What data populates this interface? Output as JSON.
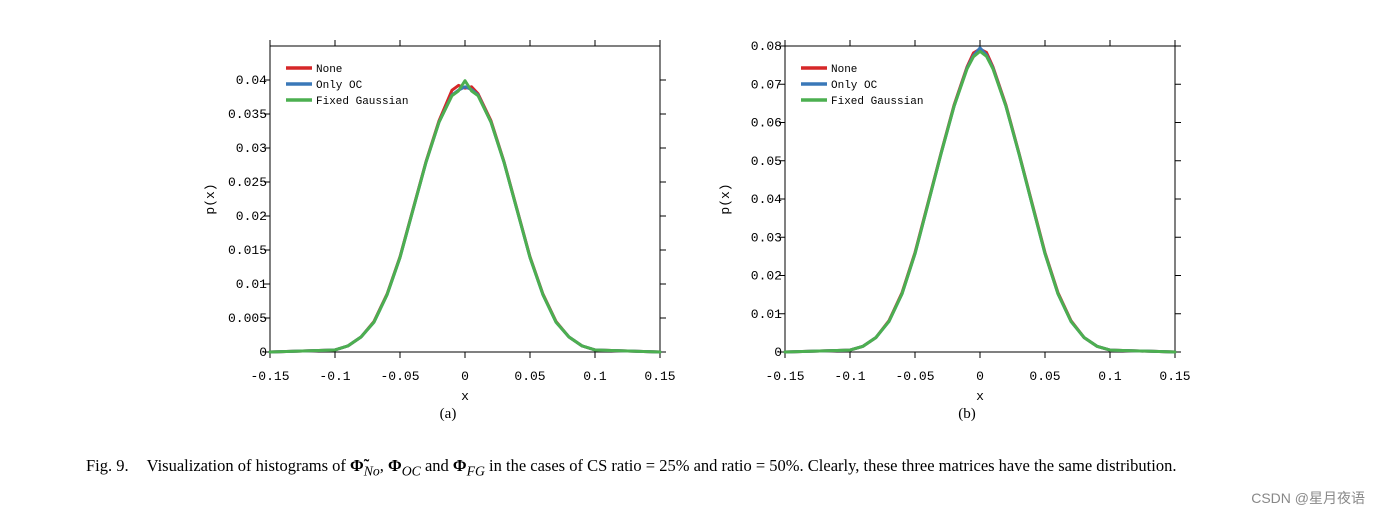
{
  "chart_data": [
    {
      "id": "a",
      "type": "line",
      "xlabel": "x",
      "ylabel": "p(x)",
      "xlim": [
        -0.15,
        0.15
      ],
      "ylim": [
        0,
        0.045
      ],
      "xticks": [
        -0.15,
        -0.1,
        -0.05,
        0,
        0.05,
        0.1,
        0.15
      ],
      "xtick_labels": [
        "-0.15",
        "-0.1",
        "-0.05",
        "0",
        "0.05",
        "0.1",
        "0.15"
      ],
      "yticks": [
        0,
        0.005,
        0.01,
        0.015,
        0.02,
        0.025,
        0.03,
        0.035,
        0.04
      ],
      "ytick_labels": [
        "0",
        "0.005",
        "0.01",
        "0.015",
        "0.02",
        "0.025",
        "0.03",
        "0.035",
        "0.04"
      ],
      "legend": "top-left",
      "sublabel": "(a)",
      "series": [
        {
          "name": "None",
          "color": "#d62728",
          "x": [
            -0.15,
            -0.1,
            -0.09,
            -0.08,
            -0.07,
            -0.06,
            -0.05,
            -0.04,
            -0.03,
            -0.02,
            -0.01,
            -0.005,
            0,
            0.005,
            0.01,
            0.02,
            0.03,
            0.04,
            0.05,
            0.06,
            0.07,
            0.08,
            0.09,
            0.1,
            0.15
          ],
          "y": [
            0,
            0.0003,
            0.0009,
            0.0022,
            0.0045,
            0.0085,
            0.014,
            0.021,
            0.028,
            0.034,
            0.0385,
            0.0392,
            0.0388,
            0.039,
            0.038,
            0.034,
            0.028,
            0.021,
            0.014,
            0.0085,
            0.0045,
            0.0022,
            0.0009,
            0.0003,
            0
          ]
        },
        {
          "name": "Only OC",
          "color": "#3a78b8",
          "x": [
            -0.15,
            -0.1,
            -0.09,
            -0.08,
            -0.07,
            -0.06,
            -0.05,
            -0.04,
            -0.03,
            -0.02,
            -0.01,
            -0.005,
            0,
            0.005,
            0.01,
            0.02,
            0.03,
            0.04,
            0.05,
            0.06,
            0.07,
            0.08,
            0.09,
            0.1,
            0.15
          ],
          "y": [
            0,
            0.0003,
            0.0009,
            0.0022,
            0.0044,
            0.0084,
            0.0139,
            0.0209,
            0.0279,
            0.0338,
            0.0378,
            0.0385,
            0.039,
            0.0386,
            0.0378,
            0.0338,
            0.0279,
            0.0209,
            0.0139,
            0.0084,
            0.0044,
            0.0022,
            0.0009,
            0.0003,
            0
          ]
        },
        {
          "name": "Fixed Gaussian",
          "color": "#4caf50",
          "x": [
            -0.15,
            -0.1,
            -0.09,
            -0.08,
            -0.07,
            -0.06,
            -0.05,
            -0.04,
            -0.03,
            -0.02,
            -0.01,
            -0.005,
            0,
            0.005,
            0.01,
            0.02,
            0.03,
            0.04,
            0.05,
            0.06,
            0.07,
            0.08,
            0.09,
            0.1,
            0.15
          ],
          "y": [
            0,
            0.0003,
            0.0009,
            0.0022,
            0.0044,
            0.0084,
            0.0139,
            0.0209,
            0.0279,
            0.0338,
            0.0377,
            0.0384,
            0.0399,
            0.0384,
            0.0377,
            0.0338,
            0.0279,
            0.0209,
            0.0139,
            0.0084,
            0.0044,
            0.0022,
            0.0009,
            0.0003,
            0
          ]
        }
      ]
    },
    {
      "id": "b",
      "type": "line",
      "xlabel": "x",
      "ylabel": "p(x)",
      "xlim": [
        -0.15,
        0.15
      ],
      "ylim": [
        0,
        0.08
      ],
      "xticks": [
        -0.15,
        -0.1,
        -0.05,
        0,
        0.05,
        0.1,
        0.15
      ],
      "xtick_labels": [
        "-0.15",
        "-0.1",
        "-0.05",
        "0",
        "0.05",
        "0.1",
        "0.15"
      ],
      "yticks": [
        0,
        0.01,
        0.02,
        0.03,
        0.04,
        0.05,
        0.06,
        0.07,
        0.08
      ],
      "ytick_labels": [
        "0",
        "0.01",
        "0.02",
        "0.03",
        "0.04",
        "0.05",
        "0.06",
        "0.07",
        "0.08"
      ],
      "legend": "top-left",
      "sublabel": "(b)",
      "series": [
        {
          "name": "None",
          "color": "#d62728",
          "x": [
            -0.15,
            -0.1,
            -0.09,
            -0.08,
            -0.07,
            -0.06,
            -0.05,
            -0.04,
            -0.03,
            -0.02,
            -0.01,
            -0.005,
            0,
            0.005,
            0.01,
            0.02,
            0.03,
            0.04,
            0.05,
            0.06,
            0.07,
            0.08,
            0.09,
            0.1,
            0.15
          ],
          "y": [
            0,
            0.0005,
            0.0015,
            0.0038,
            0.0082,
            0.0155,
            0.026,
            0.039,
            0.052,
            0.0645,
            0.0745,
            0.0782,
            0.0792,
            0.0783,
            0.0745,
            0.0645,
            0.052,
            0.039,
            0.026,
            0.0155,
            0.0082,
            0.0038,
            0.0015,
            0.0005,
            0
          ]
        },
        {
          "name": "Only OC",
          "color": "#3a78b8",
          "x": [
            -0.15,
            -0.1,
            -0.09,
            -0.08,
            -0.07,
            -0.06,
            -0.05,
            -0.04,
            -0.03,
            -0.02,
            -0.01,
            -0.005,
            0,
            0.005,
            0.01,
            0.02,
            0.03,
            0.04,
            0.05,
            0.06,
            0.07,
            0.08,
            0.09,
            0.1,
            0.15
          ],
          "y": [
            0,
            0.0005,
            0.0015,
            0.0038,
            0.008,
            0.0152,
            0.0257,
            0.0387,
            0.0518,
            0.0642,
            0.0742,
            0.0775,
            0.0795,
            0.0776,
            0.0742,
            0.0642,
            0.0518,
            0.0387,
            0.0257,
            0.0152,
            0.008,
            0.0038,
            0.0015,
            0.0005,
            0
          ]
        },
        {
          "name": "Fixed Gaussian",
          "color": "#4caf50",
          "x": [
            -0.15,
            -0.1,
            -0.09,
            -0.08,
            -0.07,
            -0.06,
            -0.05,
            -0.04,
            -0.03,
            -0.02,
            -0.01,
            -0.005,
            0,
            0.005,
            0.01,
            0.02,
            0.03,
            0.04,
            0.05,
            0.06,
            0.07,
            0.08,
            0.09,
            0.1,
            0.15
          ],
          "y": [
            0,
            0.0005,
            0.0015,
            0.0038,
            0.008,
            0.0152,
            0.0257,
            0.0387,
            0.0518,
            0.0642,
            0.074,
            0.0772,
            0.0786,
            0.0773,
            0.074,
            0.0642,
            0.0518,
            0.0387,
            0.0257,
            0.0152,
            0.008,
            0.0038,
            0.0015,
            0.0005,
            0
          ]
        }
      ]
    }
  ],
  "caption": {
    "fig_label": "Fig. 9.",
    "text_1": "Visualization of histograms of ",
    "phi_no": "Φ̃",
    "sub_no": "No",
    "sep_1": ", ",
    "phi_oc": "Φ",
    "sub_oc": "OC",
    "text_2": " and ",
    "phi_fg": "Φ",
    "sub_fg": "FG",
    "text_3": " in the cases of CS ratio = 25% and ratio = 50%. Clearly, these three matrices have the same distribution."
  },
  "watermark": "CSDN @星月夜语"
}
